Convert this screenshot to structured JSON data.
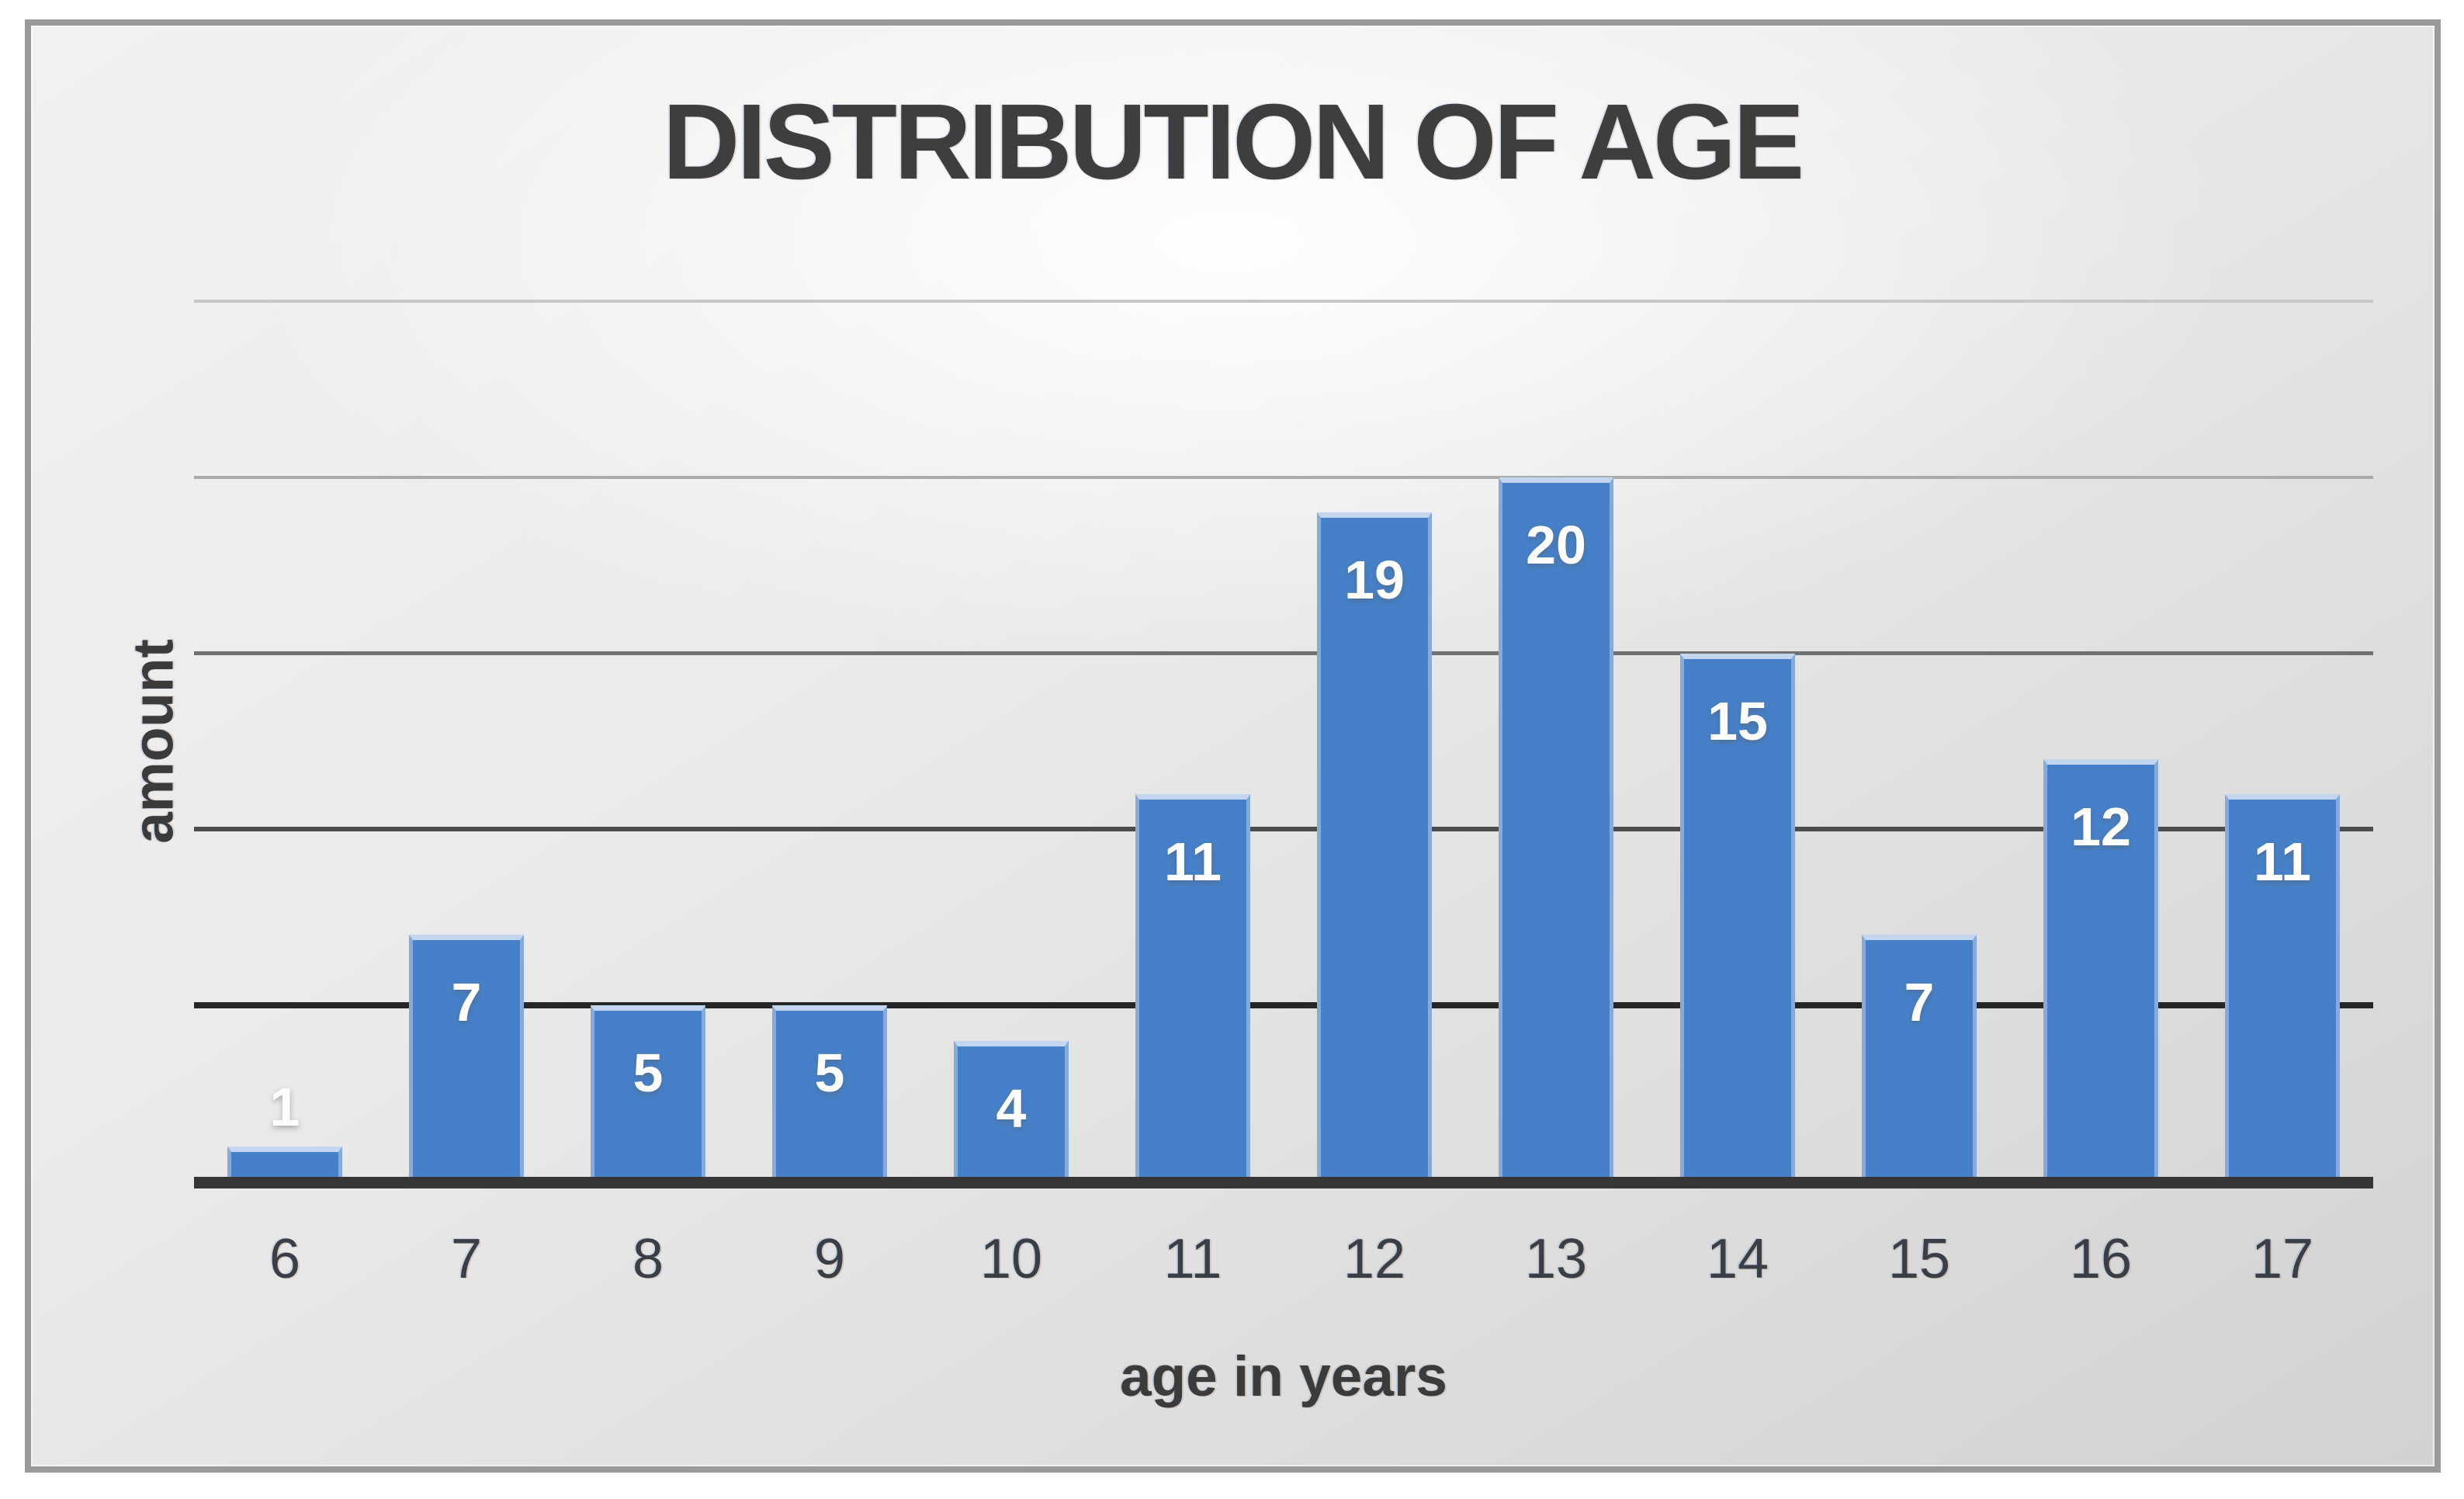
{
  "chart_data": {
    "type": "bar",
    "title": "DISTRIBUTION OF AGE",
    "xlabel": "age in years",
    "ylabel": "amount",
    "categories": [
      "6",
      "7",
      "8",
      "9",
      "10",
      "11",
      "12",
      "13",
      "14",
      "15",
      "16",
      "17"
    ],
    "values": [
      1,
      7,
      5,
      5,
      4,
      11,
      19,
      20,
      15,
      7,
      12,
      11
    ],
    "data_labels": [
      "1",
      "7",
      "5",
      "5",
      "4",
      "11",
      "19",
      "20",
      "15",
      "7",
      "12",
      "11"
    ],
    "series_name": "amount",
    "ylim": [
      0,
      25
    ],
    "gridlines": [
      5,
      10,
      15,
      20,
      25
    ],
    "y_tick_labels_visible": false,
    "grid": "horizontal",
    "legend": "none",
    "data_label_placement": "inside-end, outside-end when bar too short"
  },
  "colors": {
    "bar_fill": "#4680c8",
    "bar_top_edge": "#c4d6ee",
    "bar_side_edge": "#86abda",
    "data_label_text": "#ffffff",
    "axis_line": "#363636",
    "title_text": "#3e3e3e",
    "tick_text": "#3a3e46",
    "frame_border": "#9a9a9a",
    "gridline_5": "#262626",
    "gridline_10": "#4c4c4c",
    "gridline_15": "#707070",
    "gridline_20": "#ababab",
    "gridline_25": "#c7c7c7"
  }
}
